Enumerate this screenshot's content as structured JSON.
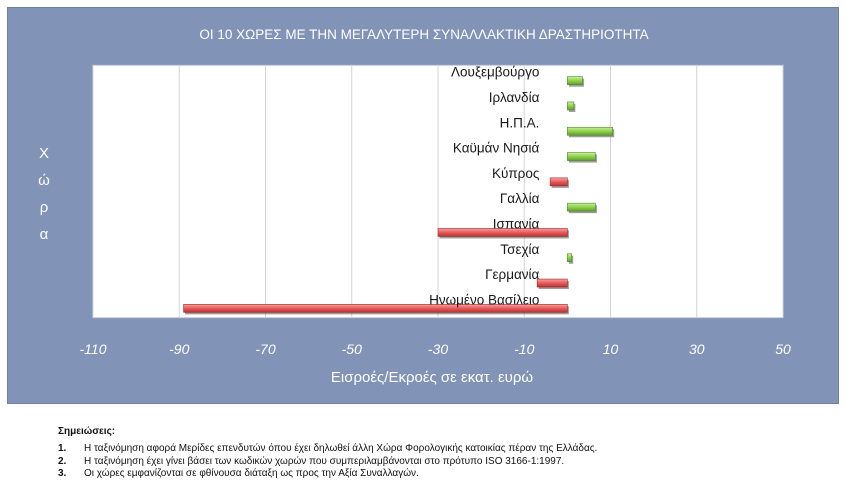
{
  "colors": {
    "frame_bg": "#8193b6",
    "plot_bg": "#ffffff",
    "positive_bar": "#8fd14f",
    "negative_bar": "#e65a5a",
    "title_text": "#ffffff",
    "axis_text": "#ffffff",
    "label_text": "#1a1a1a"
  },
  "chart_data": {
    "type": "bar",
    "orientation": "horizontal",
    "title": "ΟΙ 10 ΧΩΡΕΣ ΜΕ ΤΗΝ ΜΕΓΑΛΥΤΕΡΗ ΣΥΝΑΛΛΑΚΤΙΚΗ ΔΡΑΣΤΗΡΙΟΤΗΤΑ",
    "xlabel": "Εισροές/Εκροές σε εκατ. ευρώ",
    "ylabel": "Χώρα",
    "xlim": [
      -110,
      50
    ],
    "xticks": [
      -110,
      -90,
      -70,
      -50,
      -30,
      -10,
      10,
      30,
      50
    ],
    "grid": true,
    "categories": [
      "Λουξεμβούργο",
      "Ιρλανδία",
      "Η.Π.Α.",
      "Καϋμάν Νησιά",
      "Κύπρος",
      "Γαλλία",
      "Ισπανία",
      "Τσεχία",
      "Γερμανία",
      "Ηνωμένο Βασίλειο"
    ],
    "values": [
      3.5,
      1.5,
      10.5,
      6.5,
      -4,
      6.5,
      -30,
      1,
      -7,
      -89
    ]
  },
  "notes": {
    "title": "Σημειώσεις:",
    "items": [
      {
        "num": "1.",
        "text": "Η ταξινόμηση αφορά Μερίδες επενδυτών όπου έχει δηλωθεί άλλη Χώρα Φορολογικής κατοικίας πέραν της Ελλάδας."
      },
      {
        "num": "2.",
        "text": "Η ταξινόμηση έχει γίνει βάσει των κωδικών χωρών που συμπεριλαμβάνονται στο πρότυπο ISO 3166-1:1997."
      },
      {
        "num": "3.",
        "text": "Οι χώρες εμφανίζονται σε φθίνουσα διάταξη ως προς την Αξία Συναλλαγών."
      }
    ]
  }
}
